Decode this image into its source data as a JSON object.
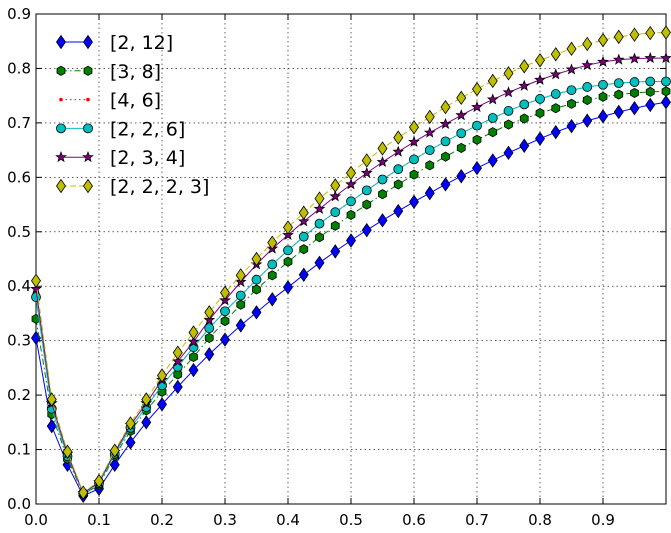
{
  "chart_data": {
    "type": "line",
    "title": "",
    "xlabel": "",
    "ylabel": "",
    "xlim": [
      0.0,
      1.0
    ],
    "ylim": [
      0.0,
      0.9
    ],
    "x_ticks": [
      0.0,
      0.1,
      0.2,
      0.3,
      0.4,
      0.5,
      0.6,
      0.7,
      0.8,
      0.9
    ],
    "x_tick_labels": [
      "0.0",
      "0.1",
      "0.2",
      "0.3",
      "0.4",
      "0.5",
      "0.6",
      "0.7",
      "0.8",
      "0.9"
    ],
    "y_ticks": [
      0.0,
      0.1,
      0.2,
      0.3,
      0.4,
      0.5,
      0.6,
      0.7,
      0.8,
      0.9
    ],
    "y_tick_labels": [
      "0.0",
      "0.1",
      "0.2",
      "0.3",
      "0.4",
      "0.5",
      "0.6",
      "0.7",
      "0.8",
      "0.9"
    ],
    "grid": true,
    "legend_position": "top-left",
    "x": [
      0.0,
      0.025,
      0.05,
      0.075,
      0.1,
      0.125,
      0.15,
      0.175,
      0.2,
      0.225,
      0.25,
      0.275,
      0.3,
      0.325,
      0.35,
      0.375,
      0.4,
      0.425,
      0.45,
      0.475,
      0.5,
      0.525,
      0.55,
      0.575,
      0.6,
      0.625,
      0.65,
      0.675,
      0.7,
      0.725,
      0.75,
      0.775,
      0.8,
      0.825,
      0.85,
      0.875,
      0.9,
      0.925,
      0.95,
      0.975,
      1.0
    ],
    "series": [
      {
        "name": "[2, 12]",
        "color": "#0000ff",
        "marker": "diamond",
        "line_style": "solid",
        "values": [
          0.305,
          0.143,
          0.072,
          0.015,
          0.028,
          0.072,
          0.113,
          0.15,
          0.183,
          0.215,
          0.246,
          0.275,
          0.302,
          0.328,
          0.352,
          0.376,
          0.398,
          0.421,
          0.443,
          0.464,
          0.484,
          0.503,
          0.521,
          0.538,
          0.555,
          0.571,
          0.587,
          0.602,
          0.617,
          0.631,
          0.645,
          0.658,
          0.671,
          0.683,
          0.694,
          0.704,
          0.712,
          0.72,
          0.727,
          0.733,
          0.738
        ]
      },
      {
        "name": "[3, 8]",
        "color": "#008000",
        "marker": "hexagon",
        "line_style": "dashdot",
        "values": [
          0.34,
          0.165,
          0.083,
          0.018,
          0.035,
          0.088,
          0.134,
          0.172,
          0.206,
          0.238,
          0.27,
          0.305,
          0.336,
          0.366,
          0.394,
          0.42,
          0.445,
          0.468,
          0.49,
          0.511,
          0.531,
          0.55,
          0.569,
          0.587,
          0.605,
          0.622,
          0.638,
          0.654,
          0.669,
          0.683,
          0.697,
          0.708,
          0.718,
          0.727,
          0.735,
          0.742,
          0.748,
          0.752,
          0.755,
          0.757,
          0.758
        ]
      },
      {
        "name": "[4, 6]",
        "color": "#ff0000",
        "marker": "point",
        "line_style": "dotted",
        "values": [
          0.38,
          0.175,
          0.088,
          0.02,
          0.038,
          0.092,
          0.14,
          0.178,
          0.218,
          0.252,
          0.288,
          0.323,
          0.354,
          0.383,
          0.412,
          0.44,
          0.466,
          0.491,
          0.515,
          0.536,
          0.556,
          0.576,
          0.596,
          0.615,
          0.633,
          0.65,
          0.666,
          0.681,
          0.695,
          0.709,
          0.722,
          0.734,
          0.744,
          0.753,
          0.76,
          0.766,
          0.77,
          0.773,
          0.775,
          0.776,
          0.776
        ]
      },
      {
        "name": "[2, 2, 6]",
        "color": "#00bfbf",
        "marker": "circle",
        "line_style": "solid",
        "values": [
          0.38,
          0.175,
          0.088,
          0.02,
          0.038,
          0.092,
          0.14,
          0.178,
          0.218,
          0.252,
          0.288,
          0.323,
          0.354,
          0.383,
          0.412,
          0.44,
          0.466,
          0.491,
          0.515,
          0.536,
          0.556,
          0.576,
          0.596,
          0.615,
          0.633,
          0.65,
          0.666,
          0.681,
          0.695,
          0.709,
          0.722,
          0.734,
          0.744,
          0.753,
          0.76,
          0.766,
          0.77,
          0.773,
          0.775,
          0.776,
          0.776
        ]
      },
      {
        "name": "[2, 3, 4]",
        "color": "#800080",
        "marker": "star",
        "line_style": "solid",
        "values": [
          0.395,
          0.185,
          0.092,
          0.02,
          0.04,
          0.095,
          0.145,
          0.185,
          0.228,
          0.262,
          0.298,
          0.338,
          0.374,
          0.408,
          0.44,
          0.469,
          0.494,
          0.519,
          0.542,
          0.565,
          0.587,
          0.608,
          0.628,
          0.647,
          0.665,
          0.682,
          0.698,
          0.714,
          0.729,
          0.743,
          0.756,
          0.768,
          0.779,
          0.789,
          0.798,
          0.806,
          0.812,
          0.816,
          0.818,
          0.819,
          0.819
        ]
      },
      {
        "name": "[2, 2, 2, 3]",
        "color": "#bfbf00",
        "marker": "diamond",
        "line_style": "dashed",
        "values": [
          0.41,
          0.192,
          0.096,
          0.021,
          0.042,
          0.098,
          0.148,
          0.192,
          0.236,
          0.278,
          0.315,
          0.352,
          0.388,
          0.42,
          0.45,
          0.48,
          0.508,
          0.535,
          0.561,
          0.585,
          0.608,
          0.631,
          0.653,
          0.673,
          0.692,
          0.711,
          0.729,
          0.746,
          0.762,
          0.777,
          0.791,
          0.804,
          0.815,
          0.826,
          0.836,
          0.845,
          0.852,
          0.858,
          0.862,
          0.865,
          0.866
        ]
      }
    ]
  }
}
